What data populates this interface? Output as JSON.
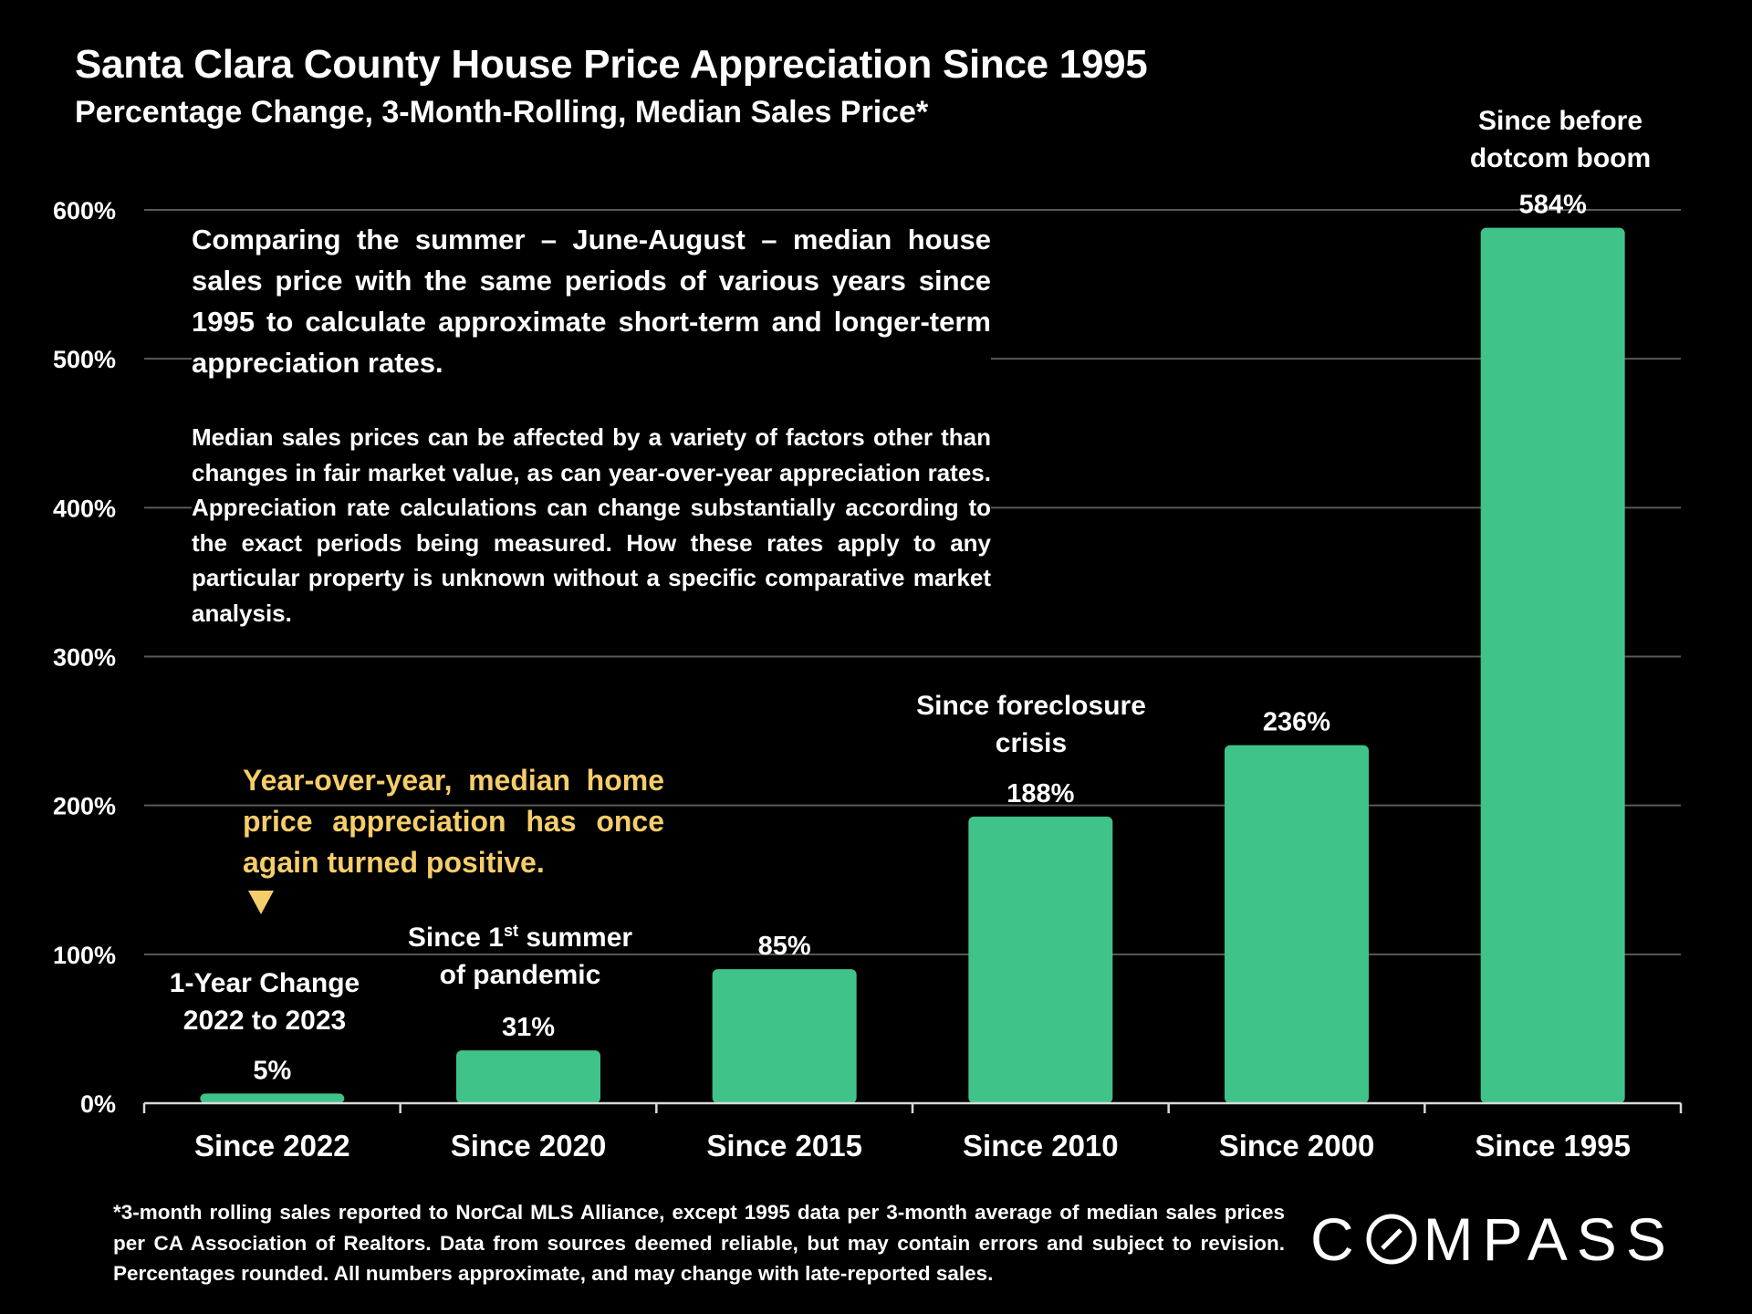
{
  "header": {
    "title": "Santa Clara County House Price Appreciation Since 1995",
    "subtitle": "Percentage Change, 3-Month-Rolling, Median Sales Price*"
  },
  "notes": {
    "paragraph1": "Comparing the summer – June-August – median house sales price with the same periods of various years since 1995 to calculate approximate short-term and longer-term appreciation rates.",
    "paragraph2": "Median sales prices can be affected by a variety of factors other than changes in fair market value, as can year-over-year appreciation rates. Appreciation rate calculations can change substantially according to the exact periods being measured. How these rates apply to any particular property is unknown without a specific comparative market analysis."
  },
  "callout": {
    "text": "Year-over-year, median home price appreciation has once again turned positive."
  },
  "annotations": {
    "since2022": [
      "1-Year Change",
      "2022 to 2023"
    ],
    "since2020_line1_pre": "Since 1",
    "since2020_line1_sup": "st",
    "since2020_line1_post": " summer",
    "since2020_line2": "of pandemic",
    "since2010": [
      "Since foreclosure",
      "crisis"
    ],
    "since1995": [
      "Since before",
      "dotcom boom"
    ]
  },
  "footnote": "*3-month rolling sales reported to NorCal MLS Alliance, except 1995 data per 3-month average of median sales prices per CA Association of Realtors. Data from sources deemed reliable, but may contain errors and subject to revision. Percentages rounded. All numbers approximate, and may change with late-reported sales.",
  "logo": {
    "pre": "C",
    "post": "MPASS",
    "icon": "compass-o-icon"
  },
  "colors": {
    "bar": "#40c389",
    "callout": "#f5cd6a",
    "gridline": "#595959",
    "background": "#000000"
  },
  "chart_data": {
    "type": "bar",
    "title": "Santa Clara County House Price Appreciation Since 1995",
    "subtitle": "Percentage Change, 3-Month-Rolling, Median Sales Price*",
    "categories": [
      "Since 2022",
      "Since 2020",
      "Since 2015",
      "Since 2010",
      "Since 2000",
      "Since 1995"
    ],
    "values": [
      5,
      31,
      85,
      188,
      236,
      584
    ],
    "value_labels": [
      "5%",
      "31%",
      "85%",
      "188%",
      "236%",
      "584%"
    ],
    "plot_values": [
      6.5,
      35.5,
      90,
      192.5,
      240.5,
      588
    ],
    "ylim": [
      0,
      600
    ],
    "yticks": [
      0,
      100,
      200,
      300,
      400,
      500,
      600
    ],
    "ytick_labels": [
      "0%",
      "100%",
      "200%",
      "300%",
      "400%",
      "500%",
      "600%"
    ],
    "grid": true,
    "xlabel": "",
    "ylabel": ""
  }
}
